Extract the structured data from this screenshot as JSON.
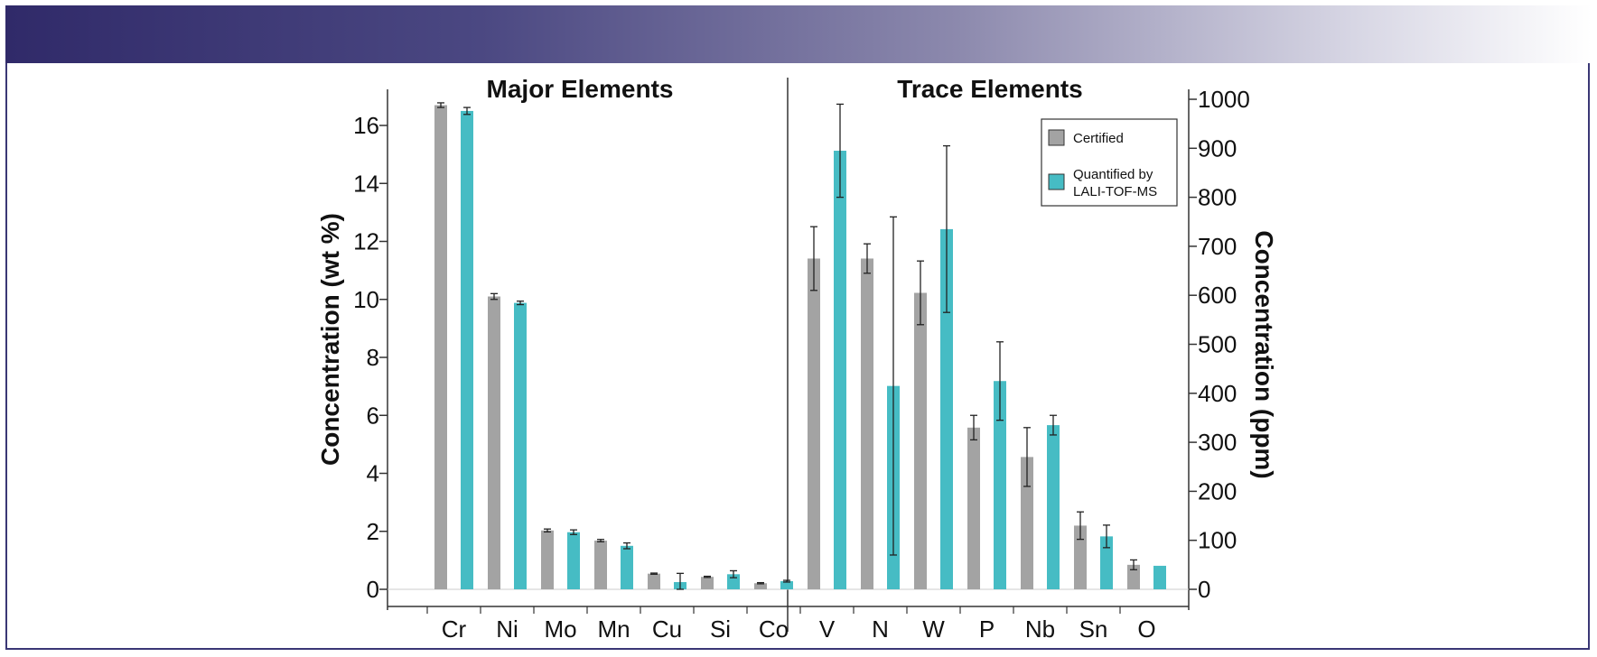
{
  "colors": {
    "certified": "#a3a3a3",
    "quantified": "#46bcc4",
    "banner_dark": "#302a69",
    "frame": "#3a3775"
  },
  "chart_data": [
    {
      "type": "bar",
      "title": "Major Elements",
      "ylabel": "Concentration (wt %)",
      "ylim": [
        0,
        17
      ],
      "yticks": [
        0,
        2,
        4,
        6,
        8,
        10,
        12,
        14,
        16
      ],
      "categories": [
        "Cr",
        "Ni",
        "Mo",
        "Mn",
        "Cu",
        "Si",
        "Co"
      ],
      "series": [
        {
          "name": "Certified",
          "values": [
            16.7,
            10.1,
            2.03,
            1.68,
            0.54,
            0.43,
            0.21
          ],
          "errors": [
            0.08,
            0.1,
            0.05,
            0.04,
            0.02,
            0.02,
            0.02
          ]
        },
        {
          "name": "Quantified by LALI-TOF-MS",
          "values": [
            16.5,
            9.88,
            1.97,
            1.5,
            0.25,
            0.52,
            0.28
          ],
          "errors": [
            0.12,
            0.06,
            0.08,
            0.1,
            0.3,
            0.12,
            0.03
          ]
        }
      ]
    },
    {
      "type": "bar",
      "title": "Trace Elements",
      "ylabel": "Concentration (ppm)",
      "ylim": [
        0,
        1020
      ],
      "yticks": [
        0,
        100,
        200,
        300,
        400,
        500,
        600,
        700,
        800,
        900,
        1000
      ],
      "categories": [
        "V",
        "N",
        "W",
        "P",
        "Nb",
        "Sn",
        "O"
      ],
      "series": [
        {
          "name": "Certified",
          "values": [
            675,
            675,
            605,
            330,
            270,
            130,
            50
          ],
          "errors": [
            65,
            30,
            65,
            25,
            60,
            28,
            10
          ]
        },
        {
          "name": "Quantified by LALI-TOF-MS",
          "values": [
            895,
            415,
            735,
            425,
            335,
            108,
            48
          ],
          "errors": [
            95,
            345,
            170,
            80,
            20,
            23,
            0
          ]
        }
      ]
    }
  ],
  "legend": {
    "certified": "Certified",
    "quantified_line1": "Quantified by",
    "quantified_line2": "LALI-TOF-MS"
  }
}
